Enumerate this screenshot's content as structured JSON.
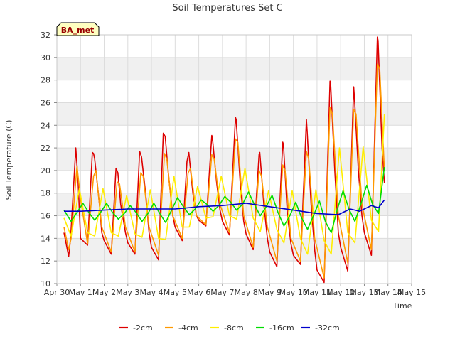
{
  "chart_data": {
    "type": "line",
    "title": "Soil Temperatures Set C",
    "xlabel": "Time",
    "ylabel": "Soil Temperature (C)",
    "xlim": [
      0,
      15
    ],
    "ylim": [
      10,
      32
    ],
    "xticks": [
      0,
      1,
      2,
      3,
      4,
      5,
      6,
      7,
      8,
      9,
      10,
      11,
      12,
      13,
      14,
      15
    ],
    "xtick_labels": [
      "Apr 30",
      "May 1",
      "May 2",
      "May 3",
      "May 4",
      "May 5",
      "May 6",
      "May 7",
      "May 8",
      "May 9",
      "May 10",
      "May 11",
      "May 12",
      "May 13",
      "May 14",
      "May 15"
    ],
    "yticks": [
      10,
      12,
      14,
      16,
      18,
      20,
      22,
      24,
      26,
      28,
      30,
      32
    ],
    "ytick_labels": [
      "10",
      "12",
      "14",
      "16",
      "18",
      "20",
      "22",
      "24",
      "26",
      "28",
      "30",
      "32"
    ],
    "grid": true,
    "band_fill": "#f0f0f0",
    "legend_position": "bottom",
    "station_badge": "BA_met",
    "series": [
      {
        "name": "-2cm",
        "color": "#dd0000",
        "x": [
          0.3,
          0.5,
          0.58,
          0.8,
          0.9,
          1.0,
          1.3,
          1.5,
          1.55,
          1.6,
          1.8,
          1.9,
          2.0,
          2.3,
          2.5,
          2.58,
          2.7,
          2.9,
          3.0,
          3.3,
          3.5,
          3.58,
          3.75,
          3.9,
          4.0,
          4.3,
          4.5,
          4.58,
          4.7,
          4.9,
          5.0,
          5.3,
          5.5,
          5.58,
          5.75,
          5.9,
          6.0,
          6.3,
          6.55,
          6.58,
          6.75,
          6.9,
          7.0,
          7.3,
          7.55,
          7.58,
          7.75,
          7.9,
          8.0,
          8.3,
          8.55,
          8.58,
          8.75,
          8.9,
          9.0,
          9.3,
          9.55,
          9.58,
          9.75,
          9.9,
          10.0,
          10.3,
          10.55,
          10.58,
          10.75,
          10.9,
          11.0,
          11.3,
          11.55,
          11.58,
          11.75,
          11.9,
          12.0,
          12.3,
          12.55,
          12.58,
          12.75,
          12.9,
          13.0,
          13.3,
          13.55,
          13.58,
          13.75,
          13.85
        ],
        "y": [
          14.5,
          12.4,
          14.0,
          22.0,
          19.0,
          14.0,
          13.4,
          21.6,
          21.5,
          21.0,
          17.0,
          14.5,
          13.8,
          12.6,
          20.2,
          19.8,
          17.0,
          14.5,
          13.6,
          12.6,
          21.7,
          21.2,
          18.0,
          14.5,
          13.2,
          12.1,
          23.3,
          23.0,
          20.0,
          16.0,
          15.0,
          13.8,
          20.8,
          21.6,
          18.0,
          16.0,
          15.6,
          15.1,
          23.1,
          22.8,
          19.0,
          16.5,
          15.5,
          14.3,
          24.7,
          24.5,
          19.0,
          15.5,
          14.4,
          13.0,
          21.4,
          21.6,
          17.0,
          14.0,
          12.8,
          11.5,
          22.5,
          22.3,
          16.0,
          13.5,
          12.5,
          11.7,
          24.5,
          23.5,
          17.0,
          13.0,
          11.2,
          10.1,
          27.9,
          27.5,
          20.0,
          14.5,
          13.2,
          11.1,
          27.4,
          26.5,
          20.0,
          16.0,
          14.5,
          12.5,
          31.8,
          31.5,
          22.0,
          18.9
        ]
      },
      {
        "name": "-4cm",
        "color": "#ff9900",
        "x": [
          0.3,
          0.5,
          0.6,
          0.85,
          1.0,
          1.3,
          1.55,
          1.65,
          1.9,
          2.3,
          2.55,
          2.65,
          2.9,
          3.3,
          3.55,
          3.65,
          3.9,
          4.3,
          4.55,
          4.65,
          4.9,
          5.3,
          5.55,
          5.65,
          5.9,
          6.3,
          6.55,
          6.65,
          6.9,
          7.3,
          7.55,
          7.65,
          7.9,
          8.3,
          8.55,
          8.65,
          8.9,
          9.3,
          9.55,
          9.65,
          9.9,
          10.3,
          10.55,
          10.65,
          10.9,
          11.3,
          11.55,
          11.65,
          11.9,
          12.3,
          12.55,
          12.65,
          12.9,
          13.3,
          13.55,
          13.65,
          13.85
        ],
        "y": [
          15.0,
          13.0,
          14.0,
          20.4,
          17.5,
          13.5,
          19.5,
          20.0,
          15.0,
          12.8,
          19.0,
          18.8,
          15.0,
          12.8,
          19.8,
          19.5,
          15.0,
          12.5,
          21.5,
          21.0,
          16.0,
          14.0,
          19.8,
          20.2,
          16.0,
          15.2,
          21.4,
          21.0,
          17.0,
          14.5,
          22.8,
          22.5,
          16.0,
          13.2,
          20.0,
          19.5,
          15.0,
          12.0,
          20.5,
          20.0,
          14.0,
          12.0,
          21.7,
          21.0,
          14.0,
          10.5,
          25.6,
          25.0,
          16.0,
          11.8,
          25.4,
          25.0,
          17.0,
          13.0,
          29.4,
          29.0,
          20.0
        ]
      },
      {
        "name": "-8cm",
        "color": "#ffee00",
        "x": [
          0.3,
          0.6,
          0.95,
          1.3,
          1.6,
          1.95,
          2.3,
          2.6,
          2.95,
          3.3,
          3.6,
          3.95,
          4.3,
          4.6,
          4.95,
          5.3,
          5.6,
          5.95,
          6.3,
          6.6,
          6.95,
          7.3,
          7.6,
          7.95,
          8.3,
          8.6,
          8.95,
          9.3,
          9.6,
          9.95,
          10.3,
          10.6,
          10.95,
          11.3,
          11.6,
          11.95,
          12.3,
          12.6,
          12.95,
          13.3,
          13.6,
          13.85
        ],
        "y": [
          15.8,
          14.2,
          18.4,
          14.5,
          14.2,
          18.4,
          14.5,
          14.2,
          17.8,
          14.4,
          14.1,
          18.3,
          14.0,
          13.9,
          19.5,
          15.0,
          15.0,
          18.6,
          15.8,
          15.9,
          19.5,
          16.0,
          15.7,
          20.2,
          15.8,
          14.6,
          18.2,
          14.8,
          13.6,
          18.2,
          14.0,
          12.6,
          18.3,
          13.8,
          12.6,
          22.0,
          14.5,
          13.6,
          22.1,
          15.6,
          14.6,
          25.0
        ]
      },
      {
        "name": "-16cm",
        "color": "#00dd00",
        "x": [
          0.3,
          0.6,
          0.85,
          1.1,
          1.35,
          1.6,
          1.85,
          2.1,
          2.35,
          2.6,
          2.85,
          3.1,
          3.35,
          3.6,
          3.85,
          4.1,
          4.35,
          4.6,
          4.85,
          5.1,
          5.35,
          5.6,
          5.85,
          6.1,
          6.35,
          6.6,
          6.85,
          7.1,
          7.35,
          7.6,
          7.85,
          8.1,
          8.35,
          8.6,
          8.85,
          9.1,
          9.35,
          9.6,
          9.85,
          10.1,
          10.35,
          10.6,
          10.85,
          11.1,
          11.35,
          11.6,
          11.85,
          12.1,
          12.35,
          12.6,
          12.85,
          13.1,
          13.35,
          13.6,
          13.85
        ],
        "y": [
          16.5,
          15.5,
          16.3,
          17.1,
          16.3,
          15.6,
          16.3,
          17.1,
          16.3,
          15.7,
          16.2,
          16.9,
          16.3,
          15.5,
          16.2,
          17.1,
          16.2,
          15.4,
          16.5,
          17.6,
          16.8,
          16.1,
          16.6,
          17.4,
          17.0,
          16.4,
          16.9,
          17.7,
          17.2,
          16.5,
          17.0,
          18.1,
          17.0,
          16.0,
          16.8,
          17.8,
          16.3,
          15.1,
          16.0,
          17.2,
          15.8,
          14.8,
          16.0,
          17.3,
          15.5,
          14.5,
          16.5,
          18.2,
          16.6,
          15.5,
          17.0,
          18.7,
          17.0,
          16.2,
          20.3
        ]
      },
      {
        "name": "-32cm",
        "color": "#0000cc",
        "x": [
          0.3,
          1.0,
          2.0,
          3.0,
          4.0,
          5.0,
          6.0,
          7.0,
          8.0,
          9.0,
          10.0,
          11.0,
          11.9,
          12.4,
          12.8,
          13.3,
          13.6,
          13.85
        ],
        "y": [
          16.4,
          16.4,
          16.5,
          16.6,
          16.6,
          16.6,
          16.8,
          16.9,
          17.1,
          16.8,
          16.5,
          16.2,
          16.1,
          16.6,
          16.4,
          16.9,
          16.7,
          17.4
        ]
      }
    ]
  }
}
